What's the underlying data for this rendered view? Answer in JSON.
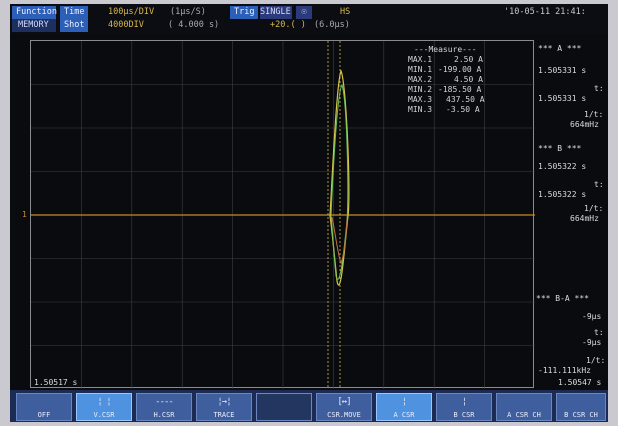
{
  "header": {
    "function_label": "Function",
    "function_value": "MEMORY",
    "time_label": "Time",
    "time_div": "100μs/DIV",
    "sample_rate": "(1μs/S)",
    "shot_label": "Shot",
    "shot_value": "4000DIV",
    "shot_duration": "( 4.000 s)",
    "trig_label": "Trig",
    "trig_mode": "SINGLE",
    "trig_status": "HS",
    "trig_level": "+20.( )",
    "trig_time": "(6.0μs)",
    "datetime": "'10-05-11 21:41:"
  },
  "measure": {
    "title": "---Measure---",
    "rows": [
      {
        "name": "MAX.1",
        "value": "2.50 A"
      },
      {
        "name": "MIN.1",
        "value": "-199.00 A"
      },
      {
        "name": "MAX.2",
        "value": "4.50 A"
      },
      {
        "name": "MIN.2",
        "value": "-185.50 A"
      },
      {
        "name": "MAX.3",
        "value": "437.50 A"
      },
      {
        "name": "MIN.3",
        "value": "-3.50 A"
      }
    ]
  },
  "cursors": {
    "a_header": "*** A ***",
    "a_time1": "1.505331 s",
    "a_t_label": "t:",
    "a_time2": "1.505331 s",
    "a_f_label": "1/t:",
    "a_freq": "664mHz",
    "b_header": "*** B ***",
    "b_time1": "1.505322 s",
    "b_t_label": "t:",
    "b_time2": "1.505322 s",
    "b_f_label": "1/t:",
    "b_freq": "664mHz",
    "ba_header": "*** B-A ***",
    "ba_time1": "-9μs",
    "ba_t_label": "t:",
    "ba_time2": "-9μs",
    "ba_f_label": "1/t:",
    "ba_freq": "-111.111kHz"
  },
  "axis": {
    "ch_marker": "1",
    "time_left": "1.50517 s",
    "time_right": "1.50547 s"
  },
  "softkeys": [
    {
      "label": "OFF",
      "icon": ""
    },
    {
      "label": "V.CSR",
      "icon": "¦ ¦"
    },
    {
      "label": "H.CSR",
      "icon": "----"
    },
    {
      "label": "TRACE",
      "icon": "¦→¦"
    },
    {
      "label": "",
      "icon": ""
    },
    {
      "label": "CSR.MOVE",
      "icon": "[↔]"
    },
    {
      "label": "A CSR",
      "icon": "¦"
    },
    {
      "label": "B CSR",
      "icon": "¦"
    },
    {
      "label": "A CSR CH",
      "icon": ""
    },
    {
      "label": "B CSR CH",
      "icon": ""
    }
  ],
  "colors": {
    "ch1": "#d6c64a",
    "ch2": "#6fc25a",
    "ch3": "#c0743d",
    "cursor": "#d4b648"
  }
}
